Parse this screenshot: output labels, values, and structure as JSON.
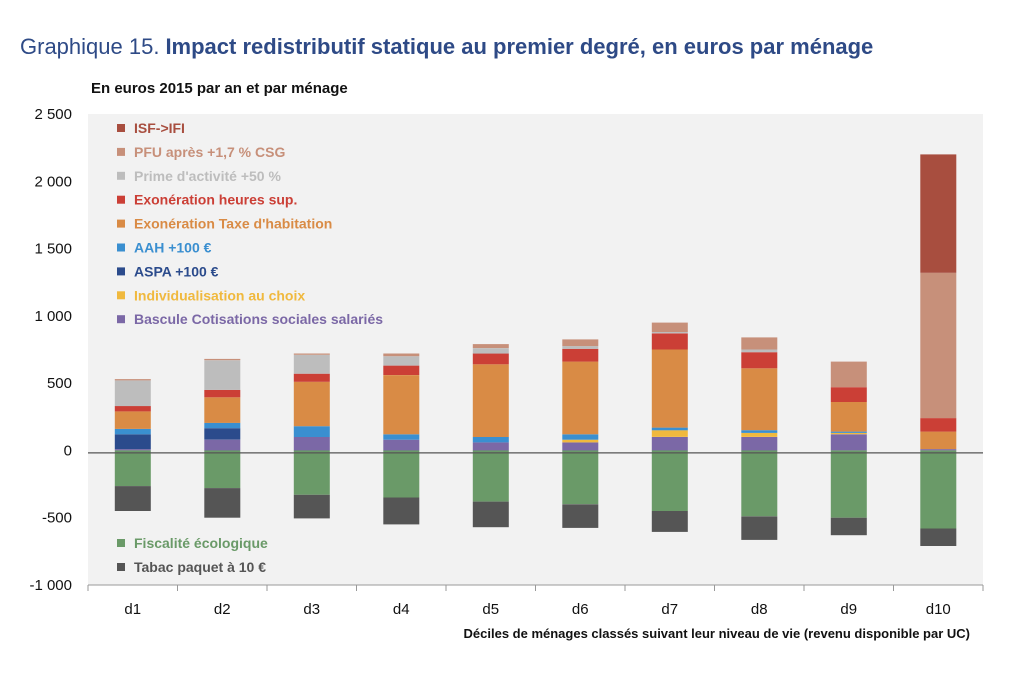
{
  "header": {
    "title_prefix": "Graphique 15.",
    "title_main": "Impact redistributif statique au premier degré, en euros par ménage",
    "subtitle": "En euros 2015 par an et par ménage"
  },
  "chart_data": {
    "type": "bar",
    "stacked": true,
    "categories": [
      "d1",
      "d2",
      "d3",
      "d4",
      "d5",
      "d6",
      "d7",
      "d8",
      "d9",
      "d10"
    ],
    "xlabel": "Déciles de ménages classés  suivant leur niveau de vie (revenu disponible par UC)",
    "ylabel": "",
    "ylim": [
      -1000,
      2500
    ],
    "yticks": [
      2500,
      2000,
      1500,
      1000,
      500,
      0,
      -500,
      -1000
    ],
    "ytick_labels": [
      "2 500",
      "2 000",
      "1 500",
      "1 000",
      "500",
      "0",
      "-500",
      "-1 000"
    ],
    "grid": false,
    "legend_position": "inside-left",
    "series": [
      {
        "name": "Bascule Cotisations sociales salariés",
        "color": "#7b68a6",
        "values": [
          10,
          80,
          100,
          80,
          60,
          60,
          100,
          100,
          120,
          10
        ]
      },
      {
        "name": "Individualisation au choix",
        "color": "#f0b93e",
        "values": [
          0,
          0,
          0,
          0,
          0,
          20,
          50,
          30,
          10,
          0
        ]
      },
      {
        "name": "ASPA +100 €",
        "color": "#2b4b8c",
        "values": [
          110,
          85,
          0,
          0,
          0,
          0,
          0,
          0,
          0,
          0
        ]
      },
      {
        "name": "AAH +100 €",
        "color": "#3a8fd0",
        "values": [
          40,
          40,
          80,
          40,
          40,
          40,
          20,
          20,
          10,
          0
        ]
      },
      {
        "name": "Exonération Taxe d'habitation",
        "color": "#d98b45",
        "values": [
          130,
          190,
          330,
          440,
          540,
          540,
          580,
          460,
          220,
          130
        ]
      },
      {
        "name": "Exonération heures sup.",
        "color": "#cb3f36",
        "values": [
          40,
          55,
          60,
          70,
          80,
          95,
          120,
          120,
          110,
          100
        ]
      },
      {
        "name": "Prime d'activité +50 %",
        "color": "#bdbdbd",
        "values": [
          190,
          220,
          140,
          70,
          40,
          20,
          10,
          20,
          0,
          0
        ]
      },
      {
        "name": "PFU après +1,7 % CSG",
        "color": "#c7907a",
        "values": [
          10,
          10,
          10,
          20,
          30,
          50,
          70,
          90,
          190,
          1080
        ]
      },
      {
        "name": "ISF->IFI",
        "color": "#a84e3f",
        "values": [
          0,
          0,
          0,
          0,
          0,
          0,
          0,
          0,
          0,
          880
        ]
      },
      {
        "name": "Fiscalité écologique",
        "color": "#6a9a68",
        "values": [
          -265,
          -280,
          -330,
          -350,
          -380,
          -400,
          -450,
          -490,
          -500,
          -580
        ]
      },
      {
        "name": "Tabac paquet à 10 €",
        "color": "#555555",
        "values": [
          -185,
          -220,
          -175,
          -200,
          -190,
          -175,
          -155,
          -175,
          -130,
          -130
        ]
      }
    ],
    "legend_upper": [
      {
        "name": "ISF->IFI",
        "color": "#a84e3f"
      },
      {
        "name": "PFU après +1,7 % CSG",
        "color": "#c7907a"
      },
      {
        "name": "Prime d'activité +50 %",
        "color": "#bdbdbd"
      },
      {
        "name": "Exonération heures sup.",
        "color": "#cb3f36"
      },
      {
        "name": "Exonération Taxe d'habitation",
        "color": "#d98b45"
      },
      {
        "name": "AAH +100 €",
        "color": "#3a8fd0"
      },
      {
        "name": "ASPA +100 €",
        "color": "#2b4b8c"
      },
      {
        "name": "Individualisation au choix",
        "color": "#f0b93e"
      },
      {
        "name": "Bascule Cotisations sociales salariés",
        "color": "#7b68a6"
      }
    ],
    "legend_lower": [
      {
        "name": "Fiscalité écologique",
        "color": "#6a9a68"
      },
      {
        "name": "Tabac paquet à 10 €",
        "color": "#555555"
      }
    ]
  }
}
